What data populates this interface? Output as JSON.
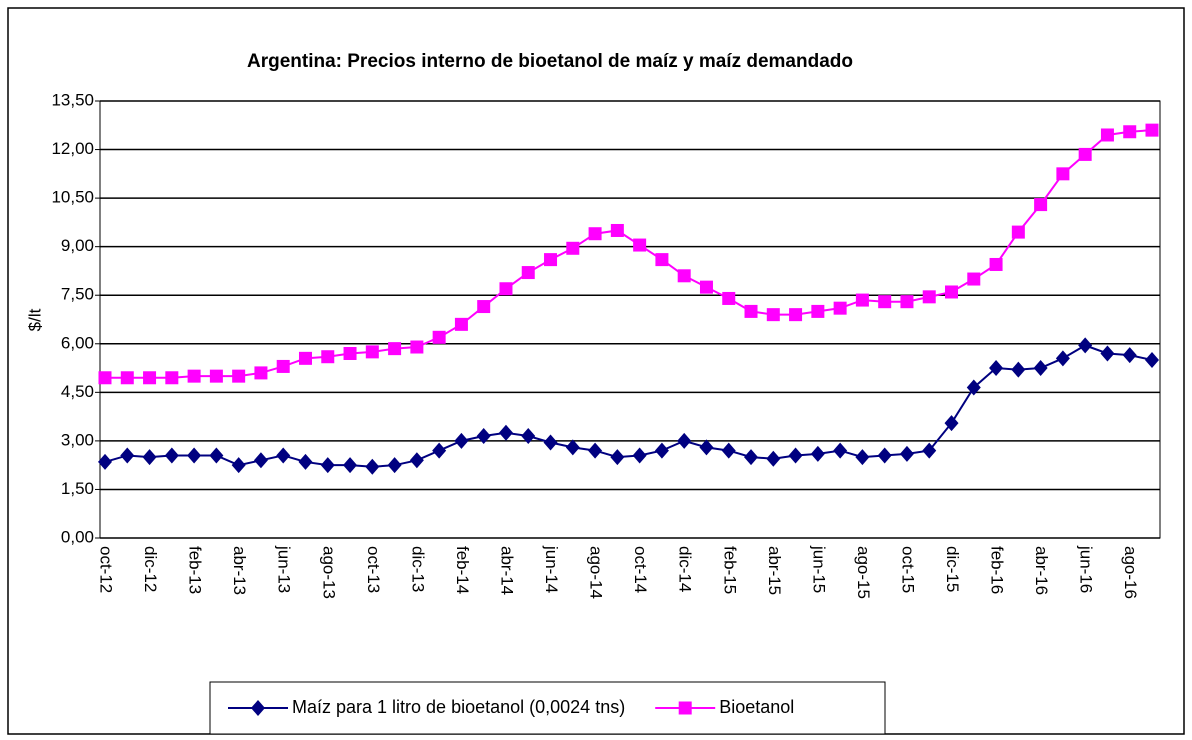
{
  "chart_data": {
    "type": "line",
    "title": "Argentina: Precios interno de bioetanol de maíz y maíz demandado",
    "y_label": "$/lt",
    "categories": [
      "oct-12",
      null,
      "dic-12",
      null,
      "feb-13",
      null,
      "abr-13",
      null,
      "jun-13",
      null,
      "ago-13",
      null,
      "oct-13",
      null,
      "dic-13",
      null,
      "feb-14",
      null,
      "abr-14",
      null,
      "jun-14",
      null,
      "ago-14",
      null,
      "oct-14",
      null,
      "dic-14",
      null,
      "feb-15",
      null,
      "abr-15",
      null,
      "jun-15",
      null,
      "ago-15",
      null,
      "oct-15",
      null,
      "dic-15",
      null,
      "feb-16",
      null,
      "abr-16",
      null,
      "jun-16",
      null,
      "ago-16",
      null
    ],
    "series": [
      {
        "name": "Maíz para 1 litro de bioetanol (0,0024 tns)",
        "color": "#000080",
        "marker": "diamond",
        "values": [
          2.35,
          2.55,
          2.5,
          2.55,
          2.55,
          2.55,
          2.25,
          2.4,
          2.55,
          2.35,
          2.25,
          2.25,
          2.2,
          2.25,
          2.4,
          2.7,
          3.0,
          3.15,
          3.25,
          3.15,
          2.95,
          2.8,
          2.7,
          2.5,
          2.55,
          2.7,
          3.0,
          2.8,
          2.7,
          2.5,
          2.45,
          2.55,
          2.6,
          2.7,
          2.5,
          2.55,
          2.6,
          2.7,
          3.55,
          4.65,
          5.25,
          5.2,
          5.25,
          5.55,
          5.95,
          5.7,
          5.65,
          5.5
        ]
      },
      {
        "name": "Bioetanol",
        "color": "#ff00ff",
        "marker": "square",
        "values": [
          4.95,
          4.95,
          4.95,
          4.95,
          5.0,
          5.0,
          5.0,
          5.1,
          5.3,
          5.55,
          5.6,
          5.7,
          5.75,
          5.85,
          5.9,
          6.2,
          6.6,
          7.15,
          7.7,
          8.2,
          8.6,
          8.95,
          9.4,
          9.5,
          9.05,
          8.6,
          8.1,
          7.75,
          7.4,
          7.0,
          6.9,
          6.9,
          7.0,
          7.1,
          7.35,
          7.3,
          7.3,
          7.45,
          7.6,
          8.0,
          8.45,
          9.45,
          10.3,
          11.25,
          11.85,
          12.45,
          12.55,
          12.6
        ]
      }
    ],
    "ylim": [
      0,
      13.5
    ],
    "yticks": [
      {
        "value": 0,
        "label": "0,00"
      },
      {
        "value": 1.5,
        "label": "1,50"
      },
      {
        "value": 3,
        "label": "3,00"
      },
      {
        "value": 4.5,
        "label": "4,50"
      },
      {
        "value": 6,
        "label": "6,00"
      },
      {
        "value": 7.5,
        "label": "7,50"
      },
      {
        "value": 9,
        "label": "9,00"
      },
      {
        "value": 10.5,
        "label": "10,50"
      },
      {
        "value": 12,
        "label": "12,00"
      },
      {
        "value": 13.5,
        "label": "13,50"
      }
    ],
    "grid": true,
    "legend": "bottom"
  }
}
